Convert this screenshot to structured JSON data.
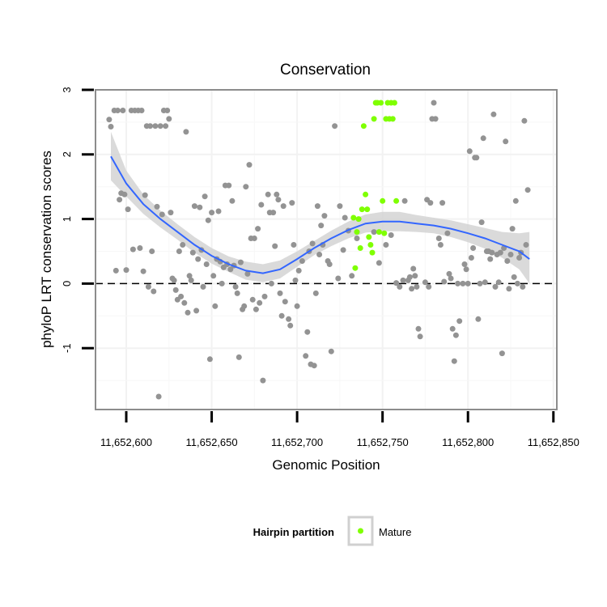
{
  "chart_data": {
    "type": "scatter",
    "title": "Conservation",
    "xlabel": "Genomic Position",
    "ylabel": "phyloP LRT conservation scores",
    "xlim": [
      11652582,
      11652852
    ],
    "ylim": [
      -1.95,
      3.0
    ],
    "x_ticks": [
      11652600,
      11652650,
      11652700,
      11652750,
      11652800,
      11652850
    ],
    "x_tick_labels": [
      "11,652,600",
      "11,652,650",
      "11,652,700",
      "11,652,750",
      "11,652,800",
      "11,652,850"
    ],
    "y_ticks": [
      -1,
      0,
      1,
      2,
      3
    ],
    "y_tick_labels": [
      "-1",
      "0",
      "1",
      "2",
      "3"
    ],
    "reference_line": {
      "y": 0,
      "style": "dashed",
      "color": "#000000"
    },
    "grid": true,
    "legend": {
      "title": "Hairpin partition",
      "placement": "bottom",
      "entries": [
        {
          "label": "Mature",
          "color": "#7fff00"
        }
      ]
    },
    "colors": {
      "other_points": "#939393",
      "mature_points": "#7fff00",
      "smooth_line": "#3366ff",
      "confidence_band": "#d3d3d3"
    },
    "series": [
      {
        "label": "other",
        "color": "#939393",
        "points": [
          [
            11652590,
            2.54
          ],
          [
            11652591,
            2.43
          ],
          [
            11652593,
            2.68
          ],
          [
            11652594,
            0.2
          ],
          [
            11652595,
            2.68
          ],
          [
            11652596,
            1.3
          ],
          [
            11652597,
            1.4
          ],
          [
            11652598,
            2.68
          ],
          [
            11652599,
            1.38
          ],
          [
            11652600,
            0.21
          ],
          [
            11652601,
            1.15
          ],
          [
            11652603,
            2.68
          ],
          [
            11652604,
            0.53
          ],
          [
            11652605,
            2.68
          ],
          [
            11652607,
            2.68
          ],
          [
            11652608,
            0.55
          ],
          [
            11652609,
            2.68
          ],
          [
            11652610,
            0.19
          ],
          [
            11652611,
            1.37
          ],
          [
            11652612,
            2.44
          ],
          [
            11652613,
            -0.05
          ],
          [
            11652614,
            2.44
          ],
          [
            11652615,
            0.5
          ],
          [
            11652616,
            -0.12
          ],
          [
            11652617,
            2.44
          ],
          [
            11652618,
            1.19
          ],
          [
            11652619,
            -1.75
          ],
          [
            11652620,
            2.44
          ],
          [
            11652621,
            1.07
          ],
          [
            11652622,
            2.68
          ],
          [
            11652623,
            2.44
          ],
          [
            11652624,
            2.68
          ],
          [
            11652625,
            2.55
          ],
          [
            11652626,
            1.1
          ],
          [
            11652627,
            0.08
          ],
          [
            11652628,
            0.05
          ],
          [
            11652629,
            -0.1
          ],
          [
            11652630,
            -0.25
          ],
          [
            11652631,
            0.5
          ],
          [
            11652632,
            -0.2
          ],
          [
            11652633,
            0.6
          ],
          [
            11652634,
            -0.3
          ],
          [
            11652635,
            2.35
          ],
          [
            11652636,
            -0.45
          ],
          [
            11652637,
            0.12
          ],
          [
            11652638,
            0.05
          ],
          [
            11652639,
            0.48
          ],
          [
            11652640,
            1.2
          ],
          [
            11652641,
            -0.42
          ],
          [
            11652642,
            0.38
          ],
          [
            11652643,
            1.18
          ],
          [
            11652644,
            0.52
          ],
          [
            11652645,
            -0.05
          ],
          [
            11652646,
            1.35
          ],
          [
            11652647,
            0.3
          ],
          [
            11652648,
            0.98
          ],
          [
            11652649,
            -1.17
          ],
          [
            11652650,
            1.1
          ],
          [
            11652651,
            0.12
          ],
          [
            11652652,
            -0.35
          ],
          [
            11652653,
            0.38
          ],
          [
            11652654,
            1.12
          ],
          [
            11652655,
            0.34
          ],
          [
            11652656,
            0.0
          ],
          [
            11652657,
            0.25
          ],
          [
            11652658,
            1.52
          ],
          [
            11652659,
            0.3
          ],
          [
            11652660,
            1.52
          ],
          [
            11652661,
            0.22
          ],
          [
            11652662,
            1.28
          ],
          [
            11652663,
            0.28
          ],
          [
            11652664,
            -0.05
          ],
          [
            11652665,
            -0.15
          ],
          [
            11652666,
            -1.14
          ],
          [
            11652667,
            0.33
          ],
          [
            11652668,
            -0.4
          ],
          [
            11652669,
            -0.35
          ],
          [
            11652670,
            1.5
          ],
          [
            11652671,
            0.15
          ],
          [
            11652672,
            1.84
          ],
          [
            11652673,
            0.7
          ],
          [
            11652674,
            -0.25
          ],
          [
            11652675,
            0.7
          ],
          [
            11652676,
            -0.4
          ],
          [
            11652677,
            0.85
          ],
          [
            11652678,
            -0.3
          ],
          [
            11652679,
            1.22
          ],
          [
            11652680,
            -1.5
          ],
          [
            11652681,
            -0.2
          ],
          [
            11652683,
            1.38
          ],
          [
            11652684,
            1.1
          ],
          [
            11652685,
            0.0
          ],
          [
            11652686,
            1.1
          ],
          [
            11652687,
            0.58
          ],
          [
            11652688,
            1.38
          ],
          [
            11652689,
            1.3
          ],
          [
            11652690,
            -0.15
          ],
          [
            11652691,
            -0.5
          ],
          [
            11652692,
            1.2
          ],
          [
            11652693,
            -0.28
          ],
          [
            11652695,
            -0.55
          ],
          [
            11652696,
            -0.65
          ],
          [
            11652697,
            1.25
          ],
          [
            11652698,
            0.6
          ],
          [
            11652699,
            0.05
          ],
          [
            11652700,
            -0.35
          ],
          [
            11652701,
            0.2
          ],
          [
            11652703,
            0.35
          ],
          [
            11652705,
            -1.12
          ],
          [
            11652706,
            -0.75
          ],
          [
            11652707,
            0.5
          ],
          [
            11652708,
            -1.25
          ],
          [
            11652709,
            0.62
          ],
          [
            11652710,
            -1.27
          ],
          [
            11652711,
            -0.15
          ],
          [
            11652712,
            1.2
          ],
          [
            11652713,
            0.45
          ],
          [
            11652714,
            0.9
          ],
          [
            11652715,
            0.6
          ],
          [
            11652716,
            1.05
          ],
          [
            11652718,
            0.35
          ],
          [
            11652719,
            0.3
          ],
          [
            11652720,
            -1.05
          ],
          [
            11652722,
            2.44
          ],
          [
            11652724,
            0.08
          ],
          [
            11652725,
            1.2
          ],
          [
            11652727,
            0.52
          ],
          [
            11652728,
            1.02
          ],
          [
            11652730,
            0.82
          ],
          [
            11652732,
            0.12
          ],
          [
            11652735,
            0.7
          ],
          [
            11652745,
            0.8
          ],
          [
            11652748,
            0.32
          ],
          [
            11652752,
            0.6
          ],
          [
            11652755,
            0.75
          ],
          [
            11652758,
            0.01
          ],
          [
            11652760,
            -0.05
          ],
          [
            11652762,
            0.05
          ],
          [
            11652763,
            1.28
          ],
          [
            11652765,
            0.05
          ],
          [
            11652766,
            0.1
          ],
          [
            11652767,
            -0.08
          ],
          [
            11652768,
            0.23
          ],
          [
            11652769,
            0.12
          ],
          [
            11652770,
            -0.05
          ],
          [
            11652771,
            -0.7
          ],
          [
            11652772,
            -0.82
          ],
          [
            11652775,
            0.02
          ],
          [
            11652776,
            1.3
          ],
          [
            11652777,
            -0.05
          ],
          [
            11652778,
            1.25
          ],
          [
            11652779,
            2.55
          ],
          [
            11652780,
            2.8
          ],
          [
            11652781,
            2.55
          ],
          [
            11652783,
            0.7
          ],
          [
            11652784,
            0.6
          ],
          [
            11652785,
            1.25
          ],
          [
            11652786,
            0.03
          ],
          [
            11652788,
            0.78
          ],
          [
            11652789,
            0.15
          ],
          [
            11652790,
            0.08
          ],
          [
            11652791,
            -0.7
          ],
          [
            11652792,
            -1.2
          ],
          [
            11652793,
            -0.8
          ],
          [
            11652794,
            0.0
          ],
          [
            11652795,
            -0.58
          ],
          [
            11652797,
            0.0
          ],
          [
            11652798,
            0.3
          ],
          [
            11652799,
            0.22
          ],
          [
            11652800,
            0.0
          ],
          [
            11652801,
            2.05
          ],
          [
            11652802,
            0.4
          ],
          [
            11652803,
            0.55
          ],
          [
            11652804,
            1.95
          ],
          [
            11652805,
            1.95
          ],
          [
            11652806,
            -0.55
          ],
          [
            11652807,
            0.0
          ],
          [
            11652808,
            0.95
          ],
          [
            11652809,
            2.25
          ],
          [
            11652810,
            0.02
          ],
          [
            11652811,
            0.5
          ],
          [
            11652812,
            0.5
          ],
          [
            11652813,
            0.38
          ],
          [
            11652814,
            0.48
          ],
          [
            11652815,
            2.62
          ],
          [
            11652816,
            -0.05
          ],
          [
            11652817,
            0.45
          ],
          [
            11652818,
            0.02
          ],
          [
            11652819,
            0.48
          ],
          [
            11652820,
            -1.08
          ],
          [
            11652821,
            0.55
          ],
          [
            11652822,
            2.2
          ],
          [
            11652823,
            0.35
          ],
          [
            11652824,
            -0.08
          ],
          [
            11652825,
            0.45
          ],
          [
            11652826,
            0.85
          ],
          [
            11652827,
            0.1
          ],
          [
            11652828,
            1.28
          ],
          [
            11652829,
            0.0
          ],
          [
            11652830,
            0.4
          ],
          [
            11652831,
            0.48
          ],
          [
            11652832,
            -0.05
          ],
          [
            11652833,
            2.52
          ],
          [
            11652834,
            0.6
          ],
          [
            11652835,
            1.45
          ]
        ]
      },
      {
        "label": "Mature",
        "color": "#7fff00",
        "points": [
          [
            11652733,
            1.02
          ],
          [
            11652734,
            0.24
          ],
          [
            11652735,
            0.8
          ],
          [
            11652736,
            1.0
          ],
          [
            11652737,
            0.55
          ],
          [
            11652738,
            1.15
          ],
          [
            11652739,
            2.44
          ],
          [
            11652740,
            1.38
          ],
          [
            11652741,
            1.15
          ],
          [
            11652742,
            0.72
          ],
          [
            11652743,
            0.6
          ],
          [
            11652744,
            0.48
          ],
          [
            11652745,
            2.55
          ],
          [
            11652746,
            2.8
          ],
          [
            11652747,
            2.8
          ],
          [
            11652748,
            0.8
          ],
          [
            11652749,
            2.8
          ],
          [
            11652750,
            1.28
          ],
          [
            11652751,
            0.78
          ],
          [
            11652752,
            2.55
          ],
          [
            11652753,
            2.8
          ],
          [
            11652754,
            2.55
          ],
          [
            11652755,
            2.8
          ],
          [
            11652756,
            2.55
          ],
          [
            11652757,
            2.8
          ],
          [
            11652758,
            1.28
          ]
        ]
      }
    ],
    "smooth": {
      "color": "#3366ff",
      "x": [
        11652591,
        11652600,
        11652610,
        11652620,
        11652630,
        11652640,
        11652650,
        11652660,
        11652670,
        11652680,
        11652690,
        11652700,
        11652710,
        11652720,
        11652730,
        11652740,
        11652750,
        11652760,
        11652770,
        11652780,
        11652790,
        11652800,
        11652810,
        11652820,
        11652830,
        11652836
      ],
      "y": [
        1.97,
        1.55,
        1.23,
        1.0,
        0.8,
        0.6,
        0.43,
        0.3,
        0.2,
        0.16,
        0.22,
        0.38,
        0.55,
        0.7,
        0.83,
        0.93,
        0.96,
        0.96,
        0.93,
        0.9,
        0.85,
        0.78,
        0.7,
        0.6,
        0.5,
        0.38
      ],
      "ci_upper": [
        2.35,
        1.75,
        1.38,
        1.13,
        0.92,
        0.72,
        0.55,
        0.42,
        0.34,
        0.3,
        0.36,
        0.5,
        0.66,
        0.82,
        0.96,
        1.07,
        1.11,
        1.11,
        1.06,
        1.02,
        0.98,
        0.92,
        0.86,
        0.8,
        0.78,
        0.8
      ],
      "ci_lower": [
        1.6,
        1.35,
        1.08,
        0.87,
        0.68,
        0.48,
        0.31,
        0.18,
        0.06,
        0.02,
        0.08,
        0.26,
        0.44,
        0.58,
        0.7,
        0.79,
        0.81,
        0.81,
        0.8,
        0.78,
        0.72,
        0.64,
        0.54,
        0.4,
        0.22,
        0.0
      ]
    }
  }
}
